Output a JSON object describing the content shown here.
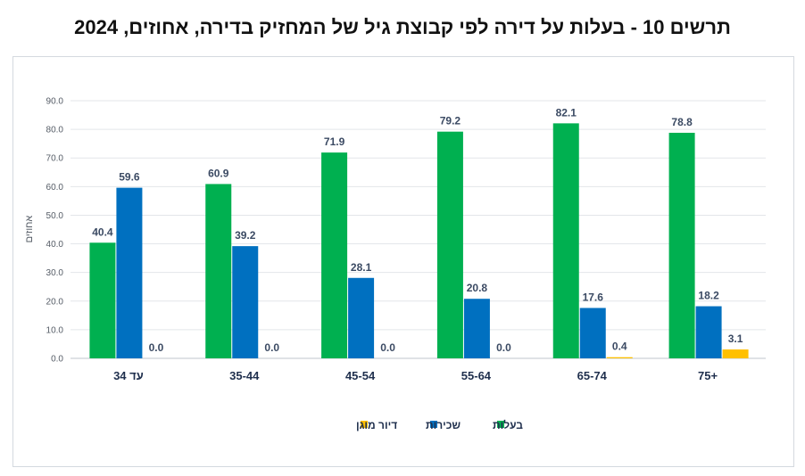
{
  "page": {
    "title": "תרשים 10 - בעלות על דירה לפי קבוצת גיל של המחזיק בדירה, אחוזים, 2024"
  },
  "chart_data": {
    "type": "bar",
    "title": "תרשים 10 - בעלות על דירה לפי קבוצת גיל של המחזיק בדירה, אחוזים, 2024",
    "ylabel": "אחוזים",
    "xlabel": "",
    "ylim": [
      0,
      90
    ],
    "yticks": [
      "0.0",
      "10.0",
      "20.0",
      "30.0",
      "40.0",
      "50.0",
      "60.0",
      "70.0",
      "80.0",
      "90.0"
    ],
    "grid": true,
    "legend_position": "bottom",
    "categories": [
      "עד 34",
      "35-44",
      "45-54",
      "55-64",
      "65-74",
      "+75"
    ],
    "series": [
      {
        "name": "בעלות",
        "color": "#00b050",
        "values": [
          40.4,
          60.9,
          71.9,
          79.2,
          82.1,
          78.8
        ]
      },
      {
        "name": "שכירות",
        "color": "#0070c0",
        "values": [
          59.6,
          39.2,
          28.1,
          20.8,
          17.6,
          18.2
        ]
      },
      {
        "name": "דיור מוגן",
        "color": "#ffc000",
        "values": [
          0.0,
          0.0,
          0.0,
          0.0,
          0.4,
          3.1
        ]
      }
    ]
  }
}
